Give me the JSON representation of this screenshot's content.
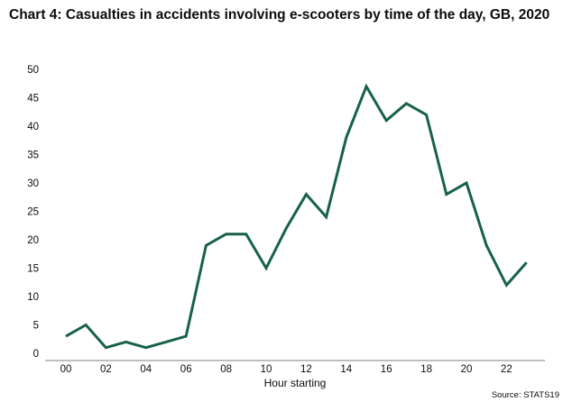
{
  "chart_data": {
    "type": "line",
    "title": "Chart 4: Casualties in accidents involving e-scooters by time of the day, GB, 2020",
    "xlabel": "Hour starting",
    "ylabel": "",
    "x": [
      "00",
      "01",
      "02",
      "03",
      "04",
      "05",
      "06",
      "07",
      "08",
      "09",
      "10",
      "11",
      "12",
      "13",
      "14",
      "15",
      "16",
      "17",
      "18",
      "19",
      "20",
      "21",
      "22",
      "23"
    ],
    "x_tick_labels": [
      "00",
      "02",
      "04",
      "06",
      "08",
      "10",
      "12",
      "14",
      "16",
      "18",
      "20",
      "22"
    ],
    "series": [
      {
        "values": [
          3,
          5,
          1,
          2,
          1,
          2,
          3,
          19,
          21,
          21,
          15,
          22,
          28,
          24,
          38,
          47,
          41,
          44,
          42,
          28,
          30,
          19,
          12,
          16
        ]
      }
    ],
    "ylim": [
      0,
      50
    ],
    "y_ticks": [
      0,
      5,
      10,
      15,
      20,
      25,
      30,
      35,
      40,
      45,
      50
    ],
    "grid": false,
    "line_color": "#17614a",
    "source": "Source: STATS19"
  }
}
